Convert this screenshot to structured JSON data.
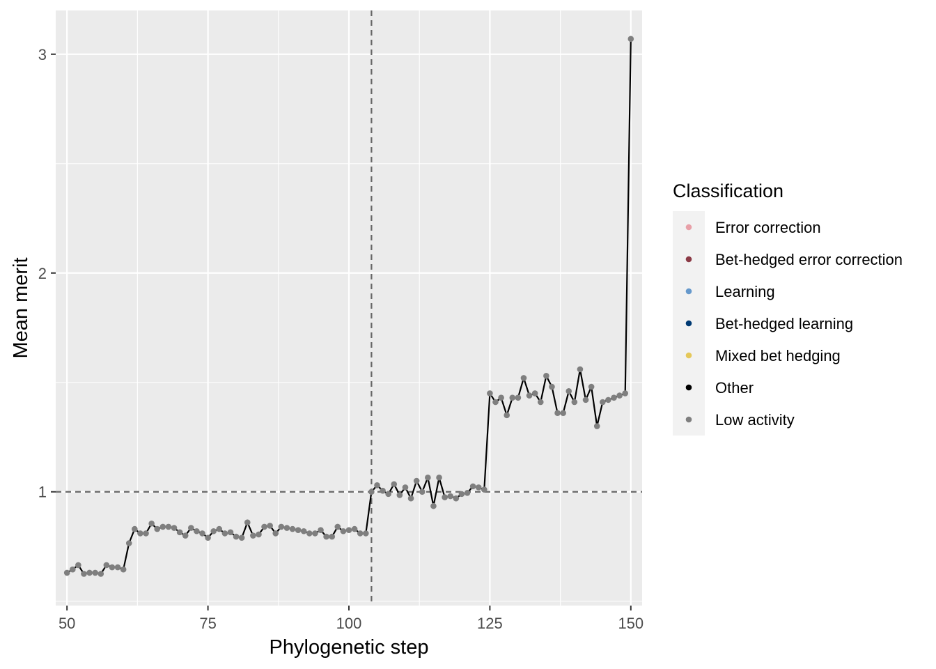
{
  "chart_data": {
    "type": "line",
    "xlabel": "Phylogenetic step",
    "ylabel": "Mean merit",
    "xlim": [
      48,
      152
    ],
    "ylim": [
      0.48,
      3.2
    ],
    "x_ticks": [
      50,
      75,
      100,
      125,
      150
    ],
    "y_ticks": [
      1,
      2,
      3
    ],
    "reference_lines": {
      "vertical_x": 104,
      "horizontal_y": 1
    },
    "grid": true,
    "legend_position": "right",
    "legend": {
      "title": "Classification",
      "items": [
        {
          "label": "Error correction",
          "color": "#E8A0A8"
        },
        {
          "label": "Bet-hedged error correction",
          "color": "#8B3A46"
        },
        {
          "label": "Learning",
          "color": "#6699CC"
        },
        {
          "label": "Bet-hedged learning",
          "color": "#003A73"
        },
        {
          "label": "Mixed bet hedging",
          "color": "#E5C85A"
        },
        {
          "label": "Other",
          "color": "#000000"
        },
        {
          "label": "Low activity",
          "color": "#7F7F7F"
        }
      ]
    },
    "series": [
      {
        "classification": "Low activity",
        "color": "#7F7F7F",
        "x": [
          50,
          51,
          52,
          53,
          54,
          55,
          56,
          57,
          58,
          59,
          60,
          61,
          62,
          63,
          64,
          65,
          66,
          67,
          68,
          69,
          70,
          71,
          72,
          73,
          74,
          75,
          76,
          77,
          78,
          79,
          80,
          81,
          82,
          83,
          84,
          85,
          86,
          87,
          88,
          89,
          90,
          91,
          92,
          93,
          94,
          95,
          96,
          97,
          98,
          99,
          100,
          101,
          102,
          103,
          104,
          105,
          106,
          107,
          108,
          109,
          110,
          111,
          112,
          113,
          114,
          115,
          116,
          117,
          118,
          119,
          120,
          121,
          122,
          123,
          124,
          125,
          126,
          127,
          128,
          129,
          130,
          131,
          132,
          133,
          134,
          135,
          136,
          137,
          138,
          139,
          140,
          141,
          142,
          143,
          144,
          145,
          146,
          147,
          148,
          149,
          150
        ],
        "y": [
          0.63,
          0.645,
          0.665,
          0.625,
          0.63,
          0.63,
          0.625,
          0.665,
          0.655,
          0.655,
          0.645,
          0.765,
          0.83,
          0.81,
          0.81,
          0.855,
          0.83,
          0.84,
          0.84,
          0.835,
          0.815,
          0.8,
          0.835,
          0.82,
          0.81,
          0.79,
          0.82,
          0.83,
          0.81,
          0.815,
          0.795,
          0.79,
          0.86,
          0.8,
          0.805,
          0.84,
          0.845,
          0.81,
          0.84,
          0.835,
          0.83,
          0.825,
          0.82,
          0.81,
          0.81,
          0.825,
          0.795,
          0.795,
          0.84,
          0.82,
          0.825,
          0.83,
          0.81,
          0.81,
          1.0,
          1.03,
          1.005,
          0.99,
          1.035,
          0.985,
          1.02,
          0.97,
          1.05,
          1.0,
          1.065,
          0.935,
          1.065,
          0.975,
          0.98,
          0.97,
          0.99,
          0.995,
          1.025,
          1.02,
          1.01,
          1.45,
          1.41,
          1.43,
          1.35,
          1.43,
          1.43,
          1.52,
          1.44,
          1.45,
          1.41,
          1.53,
          1.48,
          1.36,
          1.36,
          1.46,
          1.41,
          1.56,
          1.42,
          1.48,
          1.3,
          1.41,
          1.42,
          1.43,
          1.44,
          1.45,
          3.07
        ]
      }
    ]
  }
}
